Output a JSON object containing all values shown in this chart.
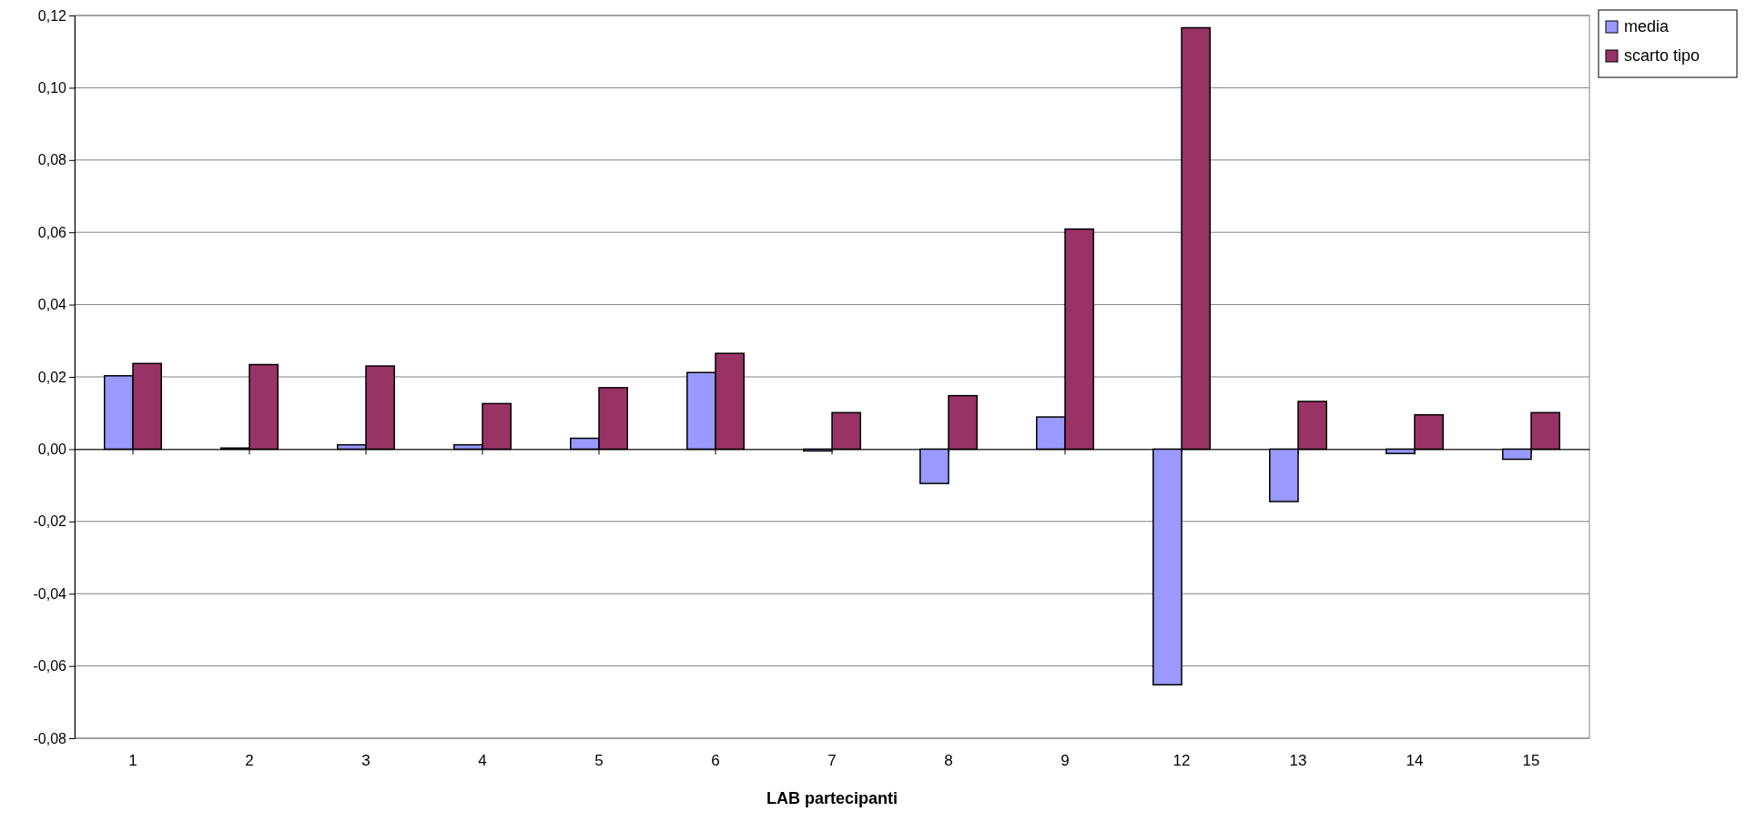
{
  "chart_data": {
    "type": "bar",
    "xlabel": "LAB partecipanti",
    "categories": [
      "1",
      "2",
      "3",
      "4",
      "5",
      "6",
      "7",
      "8",
      "9",
      "12",
      "13",
      "14",
      "15"
    ],
    "series": [
      {
        "name": "media",
        "color": "#9999ff",
        "values": [
          0.0203,
          0.0003,
          0.0012,
          0.0012,
          0.003,
          0.0212,
          -0.0005,
          -0.0095,
          0.0089,
          -0.0652,
          -0.0145,
          -0.0012,
          -0.0028
        ]
      },
      {
        "name": "scarto tipo",
        "color": "#993366",
        "values": [
          0.0237,
          0.0234,
          0.023,
          0.0126,
          0.017,
          0.0265,
          0.0101,
          0.0148,
          0.0609,
          0.1166,
          0.0132,
          0.0095,
          0.0101
        ]
      }
    ],
    "ylim": [
      -0.08,
      0.12
    ],
    "yticks": [
      {
        "value": -0.08,
        "label": "-0,08"
      },
      {
        "value": -0.06,
        "label": "-0,06"
      },
      {
        "value": -0.04,
        "label": "-0,04"
      },
      {
        "value": -0.02,
        "label": "-0,02"
      },
      {
        "value": 0,
        "label": "0,00"
      },
      {
        "value": 0.02,
        "label": "0,02"
      },
      {
        "value": 0.04,
        "label": "0,04"
      },
      {
        "value": 0.06,
        "label": "0,06"
      },
      {
        "value": 0.08,
        "label": "0,08"
      },
      {
        "value": 0.1,
        "label": "0,10"
      },
      {
        "value": 0.12,
        "label": "0,12"
      }
    ],
    "grid": "y",
    "legend": "top right"
  }
}
